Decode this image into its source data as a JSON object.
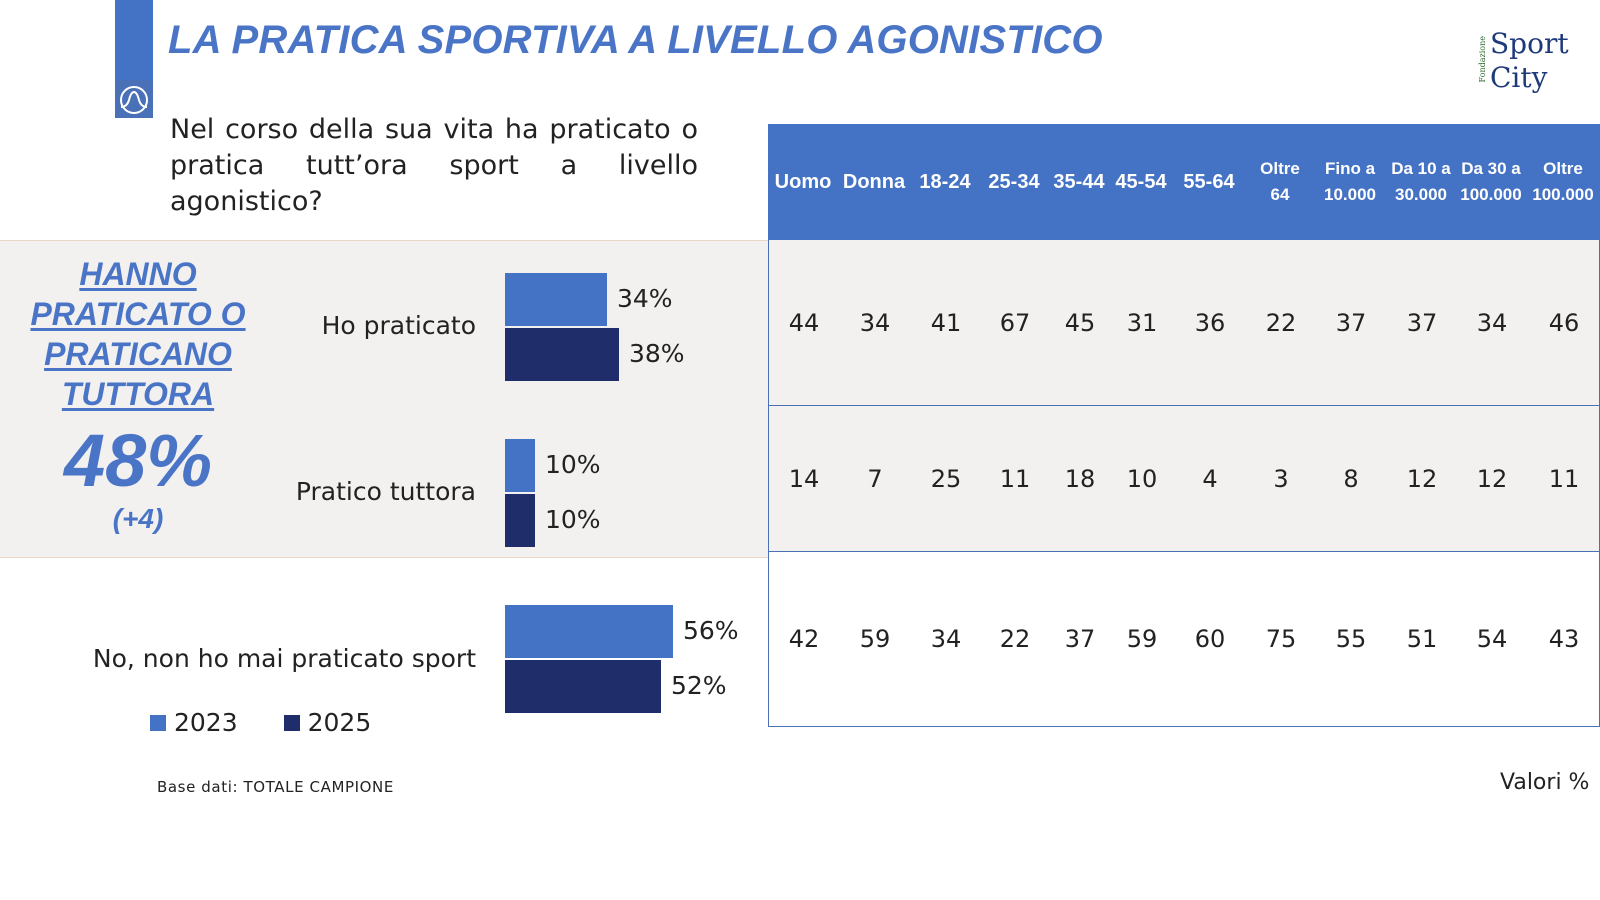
{
  "header": {
    "title": "LA PRATICA SPORTIVA A LIVELLO AGONISTICO",
    "brand_small": "Fondazione",
    "brand_line1": "Sport",
    "brand_line2": "City"
  },
  "question": "Nel corso della sua vita ha praticato o pratica tutt’ora sport a livello agonistico?",
  "summary": {
    "label_lines": [
      "HANNO",
      "PRATICATO O",
      "PRATICANO",
      "TUTTORA"
    ],
    "value": "48%",
    "delta": "(+4)"
  },
  "colors": {
    "accent": "#4472c4",
    "series_2023": "#4472c4",
    "series_2025": "#1f2e6a",
    "table_header": "#4472c4"
  },
  "chart_data": [
    {
      "type": "bar",
      "categories": [
        "Ho praticato",
        "Pratico tuttora",
        "No, non ho mai praticato sport"
      ],
      "series": [
        {
          "name": "2023",
          "values": [
            34,
            10,
            56
          ],
          "labels": [
            "34%",
            "10%",
            "56%"
          ]
        },
        {
          "name": "2025",
          "values": [
            38,
            10,
            52
          ],
          "labels": [
            "38%",
            "10%",
            "52%"
          ]
        }
      ],
      "orientation": "horizontal",
      "legend": "bottom-left"
    },
    {
      "type": "table",
      "columns": [
        [
          "Uomo"
        ],
        [
          "Donna"
        ],
        [
          "18-24"
        ],
        [
          "25-34"
        ],
        [
          "35-44"
        ],
        [
          "45-54"
        ],
        [
          "55-64"
        ],
        [
          "Oltre",
          "64"
        ],
        [
          "Fino a",
          "10.000"
        ],
        [
          "Da 10 a",
          "30.000"
        ],
        [
          "Da 30 a",
          "100.000"
        ],
        [
          "Oltre",
          "100.000"
        ]
      ],
      "rows": [
        [
          "44",
          "34",
          "41",
          "67",
          "45",
          "31",
          "36",
          "22",
          "37",
          "37",
          "34",
          "46"
        ],
        [
          "14",
          "7",
          "25",
          "11",
          "18",
          "10",
          "4",
          "3",
          "8",
          "12",
          "12",
          "11"
        ],
        [
          "42",
          "59",
          "34",
          "22",
          "37",
          "59",
          "60",
          "75",
          "55",
          "51",
          "54",
          "43"
        ]
      ]
    }
  ],
  "footnote": "Base dati: TOTALE CAMPIONE",
  "unit_note": "Valori %"
}
